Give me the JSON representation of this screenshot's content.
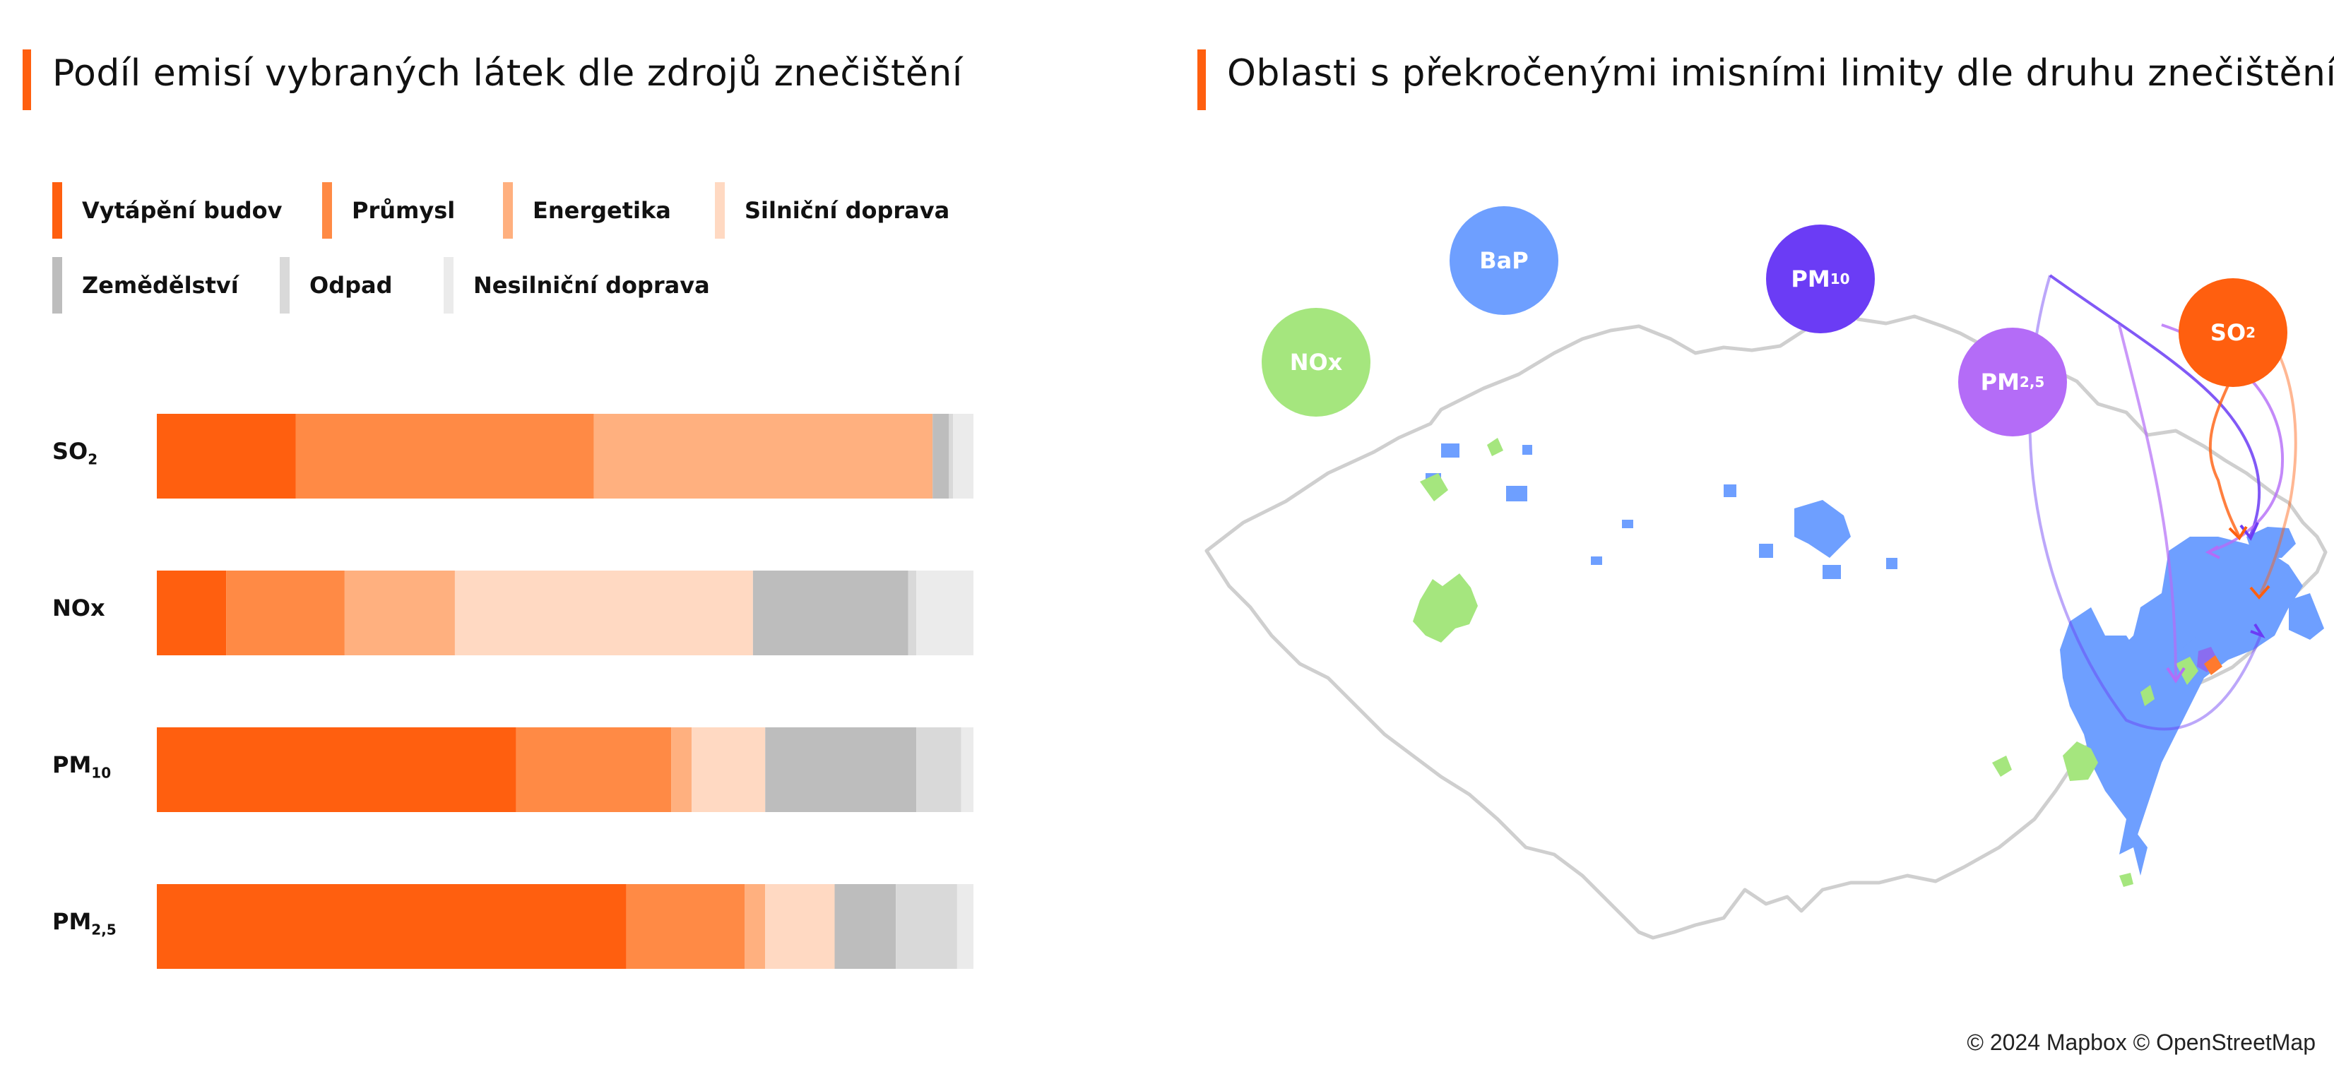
{
  "left_panel": {
    "title": "Podíl emisí vybraných látek dle zdrojů znečištění",
    "accent": "#FF5F0F"
  },
  "right_panel": {
    "title": "Oblasti s překročenými imisními limity dle druhu znečištění",
    "accent": "#FF5F0F"
  },
  "legend": [
    {
      "label": "Vytápění budov",
      "color": "#FF5F0F"
    },
    {
      "label": "Průmysl",
      "color": "#FF8A45"
    },
    {
      "label": "Energetika",
      "color": "#FFB07F"
    },
    {
      "label": "Silniční doprava",
      "color": "#FFD9C2"
    },
    {
      "label": "Zemědělství",
      "color": "#BDBDBD"
    },
    {
      "label": "Odpad",
      "color": "#D9D9D9"
    },
    {
      "label": "Nesilniční doprava",
      "color": "#EBEBEB"
    }
  ],
  "chart_data": {
    "type": "bar",
    "orientation": "horizontal",
    "stacked": true,
    "title": "Podíl emisí vybraných látek dle zdrojů znečištění",
    "categories": [
      {
        "base": "SO",
        "sub": "2"
      },
      {
        "base": "NOx",
        "sub": ""
      },
      {
        "base": "PM",
        "sub": "10"
      },
      {
        "base": "PM",
        "sub": "2,5"
      }
    ],
    "xlim": [
      0,
      100
    ],
    "series": [
      {
        "name": "Vytápění budov",
        "color": "#FF5F0F",
        "values": [
          17,
          8.5,
          44,
          57.5
        ]
      },
      {
        "name": "Průmysl",
        "color": "#FF8A45",
        "values": [
          36.5,
          14.5,
          19,
          14.5
        ]
      },
      {
        "name": "Energetika",
        "color": "#FFB07F",
        "values": [
          41.5,
          13.5,
          2.5,
          2.5
        ]
      },
      {
        "name": "Silniční doprava",
        "color": "#FFD9C2",
        "values": [
          0,
          36.5,
          9,
          8.5
        ]
      },
      {
        "name": "Zemědělství",
        "color": "#BDBDBD",
        "values": [
          2,
          19,
          18.5,
          7.5
        ]
      },
      {
        "name": "Odpad",
        "color": "#D9D9D9",
        "values": [
          0.5,
          1,
          5.5,
          7.5
        ]
      },
      {
        "name": "Nesilniční doprava",
        "color": "#EBEBEB",
        "values": [
          2.5,
          7,
          1.5,
          2
        ]
      }
    ]
  },
  "map": {
    "bubbles": [
      {
        "base": "NOx",
        "sub": "",
        "color": "#A5E67E"
      },
      {
        "base": "BaP",
        "sub": "",
        "color": "#6E9FFF"
      },
      {
        "base": "PM",
        "sub": "10",
        "color": "#6B3CF5"
      },
      {
        "base": "PM",
        "sub": "2,5",
        "color": "#B46CF7"
      },
      {
        "base": "SO",
        "sub": "2",
        "color": "#FF5F0F"
      }
    ],
    "credit": "© 2024 Mapbox © OpenStreetMap"
  }
}
